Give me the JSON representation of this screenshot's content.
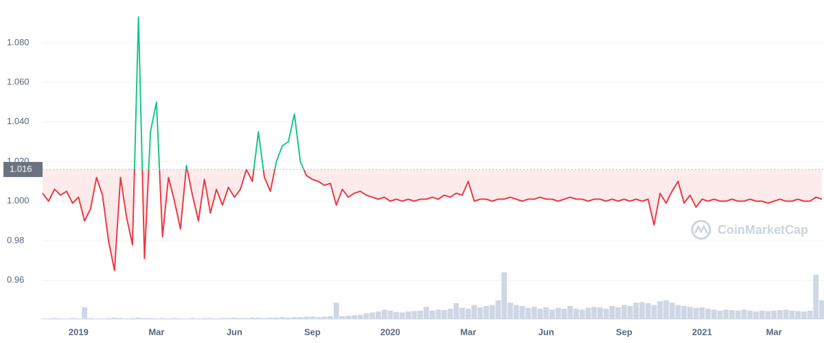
{
  "chart_data": {
    "type": "line",
    "categories": [
      null,
      null,
      null,
      null,
      null,
      null,
      "2019",
      null,
      null,
      null,
      null,
      null,
      null,
      null,
      null,
      null,
      null,
      null,
      null,
      "Mar",
      null,
      null,
      null,
      null,
      null,
      null,
      null,
      null,
      null,
      null,
      null,
      null,
      "Jun",
      null,
      null,
      null,
      null,
      null,
      null,
      null,
      null,
      null,
      null,
      null,
      null,
      "Sep",
      null,
      null,
      null,
      null,
      null,
      null,
      null,
      null,
      null,
      null,
      null,
      null,
      "2020",
      null,
      null,
      null,
      null,
      null,
      null,
      null,
      null,
      null,
      null,
      null,
      null,
      "Mar",
      null,
      null,
      null,
      null,
      null,
      null,
      null,
      null,
      null,
      null,
      null,
      null,
      "Jun",
      null,
      null,
      null,
      null,
      null,
      null,
      null,
      null,
      null,
      null,
      null,
      null,
      "Sep",
      null,
      null,
      null,
      null,
      null,
      null,
      null,
      null,
      null,
      null,
      null,
      null,
      "2021",
      null,
      null,
      null,
      null,
      null,
      null,
      null,
      null,
      null,
      null,
      null,
      "Mar",
      null,
      null,
      null,
      null,
      null,
      null,
      null,
      null
    ],
    "series": [
      {
        "values": [
          1.004,
          1.0,
          1.006,
          1.003,
          1.005,
          0.999,
          1.002,
          0.99,
          0.996,
          1.012,
          1.003,
          0.98,
          0.965,
          1.012,
          0.992,
          0.978,
          1.093,
          0.971,
          1.035,
          1.05,
          0.982,
          1.012,
          1.0,
          0.986,
          1.018,
          1.003,
          0.99,
          1.011,
          0.994,
          1.006,
          0.998,
          1.007,
          1.002,
          1.006,
          1.016,
          1.01,
          1.035,
          1.012,
          1.005,
          1.02,
          1.028,
          1.03,
          1.044,
          1.02,
          1.013,
          1.011,
          1.01,
          1.008,
          1.009,
          0.998,
          1.006,
          1.002,
          1.004,
          1.005,
          1.003,
          1.002,
          1.001,
          1.002,
          1.0,
          1.001,
          1.0,
          1.001,
          1.0,
          1.001,
          1.001,
          1.002,
          1.001,
          1.003,
          1.002,
          1.004,
          1.003,
          1.01,
          1.0,
          1.001,
          1.001,
          1.0,
          1.001,
          1.001,
          1.002,
          1.001,
          1.0,
          1.001,
          1.001,
          1.002,
          1.001,
          1.001,
          1.0,
          1.001,
          1.002,
          1.001,
          1.001,
          1.0,
          1.001,
          1.001,
          1.0,
          1.001,
          1.0,
          1.001,
          1.0,
          1.001,
          1.0,
          1.001,
          0.988,
          1.004,
          0.999,
          1.005,
          1.01,
          0.999,
          1.003,
          0.997,
          1.001,
          1.0,
          1.001,
          1.0,
          1.0,
          1.001,
          1.0,
          1.0,
          1.001,
          1.0,
          1.0,
          0.999,
          1.0,
          1.001,
          1.0,
          1.0,
          1.001,
          1.0,
          1.0,
          1.002,
          1.001
        ]
      }
    ],
    "volume": [
      1,
      1,
      2,
      1,
      1,
      2,
      1,
      25,
      2,
      1,
      1,
      2,
      3,
      2,
      1,
      2,
      3,
      2,
      2,
      1,
      2,
      1,
      2,
      1,
      1,
      2,
      1,
      2,
      2,
      1,
      2,
      2,
      3,
      2,
      2,
      3,
      3,
      2,
      3,
      3,
      4,
      3,
      4,
      4,
      5,
      5,
      4,
      5,
      6,
      35,
      6,
      7,
      8,
      9,
      12,
      14,
      16,
      20,
      18,
      15,
      14,
      16,
      17,
      18,
      26,
      18,
      20,
      19,
      22,
      34,
      24,
      22,
      30,
      25,
      28,
      30,
      40,
      100,
      35,
      30,
      28,
      24,
      26,
      22,
      25,
      20,
      24,
      22,
      28,
      22,
      20,
      24,
      26,
      25,
      22,
      28,
      25,
      30,
      28,
      35,
      36,
      34,
      30,
      38,
      40,
      35,
      30,
      28,
      26,
      24,
      25,
      22,
      20,
      18,
      20,
      19,
      18,
      20,
      18,
      16,
      18,
      17,
      18,
      19,
      20,
      18,
      17,
      16,
      18,
      95,
      40
    ],
    "ylim": [
      0.9405,
      1.1016
    ],
    "yticks": [
      0.96,
      0.98,
      {
        "value": 1.0,
        "label": "1.000"
      },
      {
        "value": 1.02,
        "label": "1.020"
      },
      {
        "value": 1.04,
        "label": "1.040"
      },
      {
        "value": 1.06,
        "label": "1.060"
      },
      {
        "value": 1.08,
        "label": "1.080"
      }
    ],
    "baseline": 1.016,
    "color_above": "#16c784",
    "color_below": "#ea3943",
    "volume_color": "#cfd6e4",
    "grid": true,
    "watermark": "CoinMarketCap"
  }
}
